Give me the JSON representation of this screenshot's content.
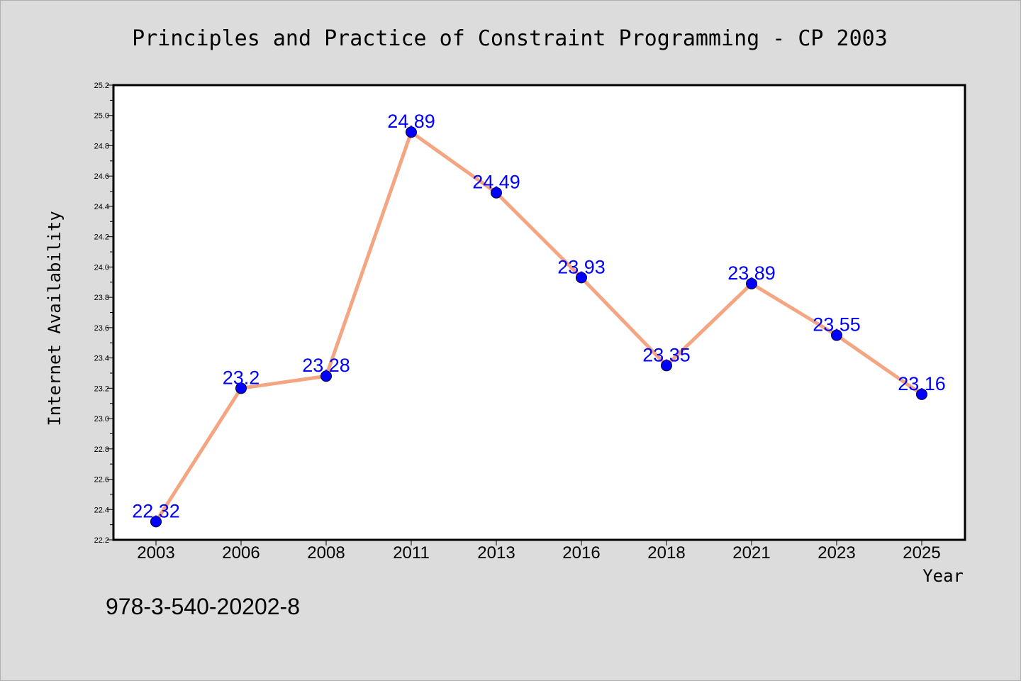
{
  "colors": {
    "background": "#dcdcdc",
    "plot_background": "#ffffff",
    "line": "#f4a582",
    "marker": "#0000ff",
    "data_label": "#0000ff"
  },
  "footnote": "978-3-540-20202-8",
  "chart_data": {
    "type": "line",
    "title": "Principles and Practice of Constraint Programming - CP 2003",
    "xlabel": "Year",
    "ylabel": "Internet Availability",
    "categories": [
      "2003",
      "2006",
      "2008",
      "2011",
      "2013",
      "2016",
      "2018",
      "2021",
      "2023",
      "2025"
    ],
    "series": [
      {
        "values": [
          22.32,
          23.2,
          23.28,
          24.89,
          24.49,
          23.93,
          23.35,
          23.89,
          23.55,
          23.16
        ],
        "labels": [
          "22.32",
          "23.2",
          "23.28",
          "24.89",
          "24.49",
          "23.93",
          "23.35",
          "23.89",
          "23.55",
          "23.16"
        ]
      }
    ],
    "ylim": [
      22.2,
      25.2
    ],
    "yticks": [
      "22.2",
      "22.4",
      "22.6",
      "22.8",
      "23.0",
      "23.2",
      "23.4",
      "23.6",
      "23.8",
      "24.0",
      "24.2",
      "24.4",
      "24.6",
      "24.8",
      "25.0",
      "25.2"
    ],
    "grid": false,
    "legend": "none",
    "marker": "circle"
  }
}
